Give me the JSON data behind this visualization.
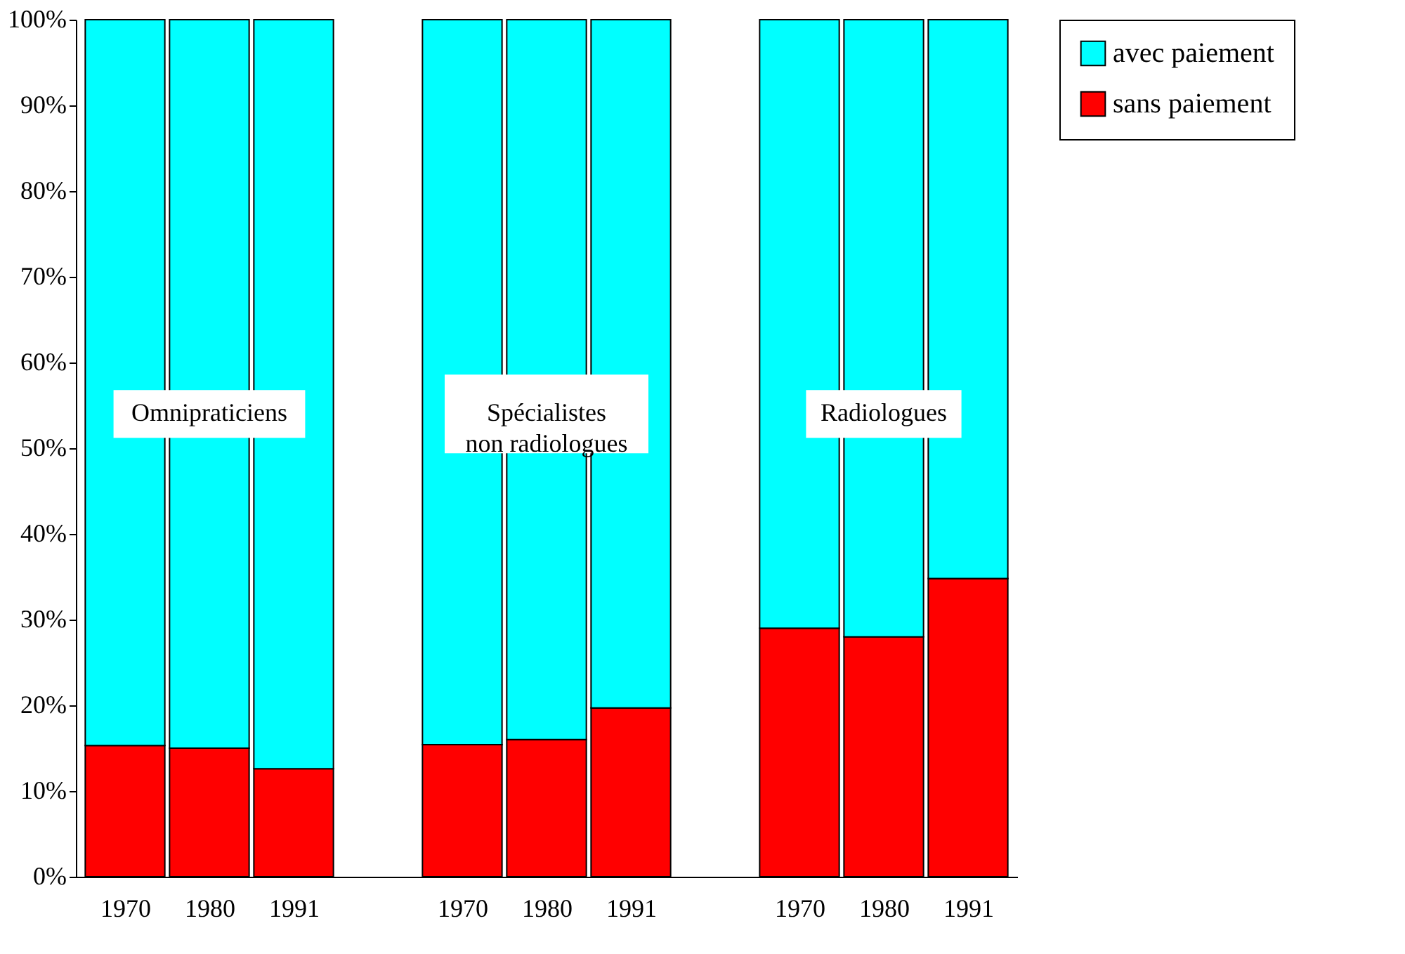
{
  "chart_data": {
    "type": "bar",
    "stacked": true,
    "categories": [
      "1970",
      "1980",
      "1991",
      null,
      "1970",
      "1980",
      "1991",
      null,
      "1970",
      "1980",
      "1991"
    ],
    "series": [
      {
        "name": "sans paiement",
        "color": "#ff0000",
        "values": [
          15.3,
          15,
          12.6,
          null,
          15.4,
          16,
          19.7,
          null,
          29,
          28,
          34.8
        ]
      },
      {
        "name": "avec paiement",
        "color": "#00ffff",
        "values": [
          84.7,
          85,
          87.4,
          null,
          84.6,
          84,
          80.3,
          null,
          71,
          72,
          65.2
        ]
      }
    ],
    "ylim": [
      0,
      100
    ],
    "yticks": [
      {
        "value": 0,
        "label": "0%"
      },
      {
        "value": 10,
        "label": "10%"
      },
      {
        "value": 20,
        "label": "20%"
      },
      {
        "value": 30,
        "label": "30%"
      },
      {
        "value": 40,
        "label": "40%"
      },
      {
        "value": 50,
        "label": "50%"
      },
      {
        "value": 60,
        "label": "60%"
      },
      {
        "value": 70,
        "label": "70%"
      },
      {
        "value": 80,
        "label": "80%"
      },
      {
        "value": 90,
        "label": "90%"
      },
      {
        "value": 100,
        "label": "100%"
      }
    ],
    "annotations": [
      "Omnipraticiens",
      "Spécialistes\nnon radiologues",
      "Radiologues"
    ],
    "legend": "right",
    "grid": false
  }
}
